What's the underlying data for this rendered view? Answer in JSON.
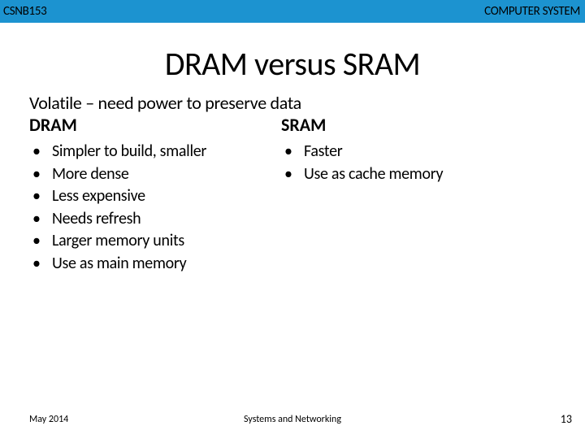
{
  "header": {
    "bg_color": "#1c93d0",
    "left": "CSNB153",
    "right": "COMPUTER SYSTEM"
  },
  "title": "DRAM versus SRAM",
  "subtitle": "Volatile – need power to preserve data",
  "left_column": {
    "heading": "DRAM",
    "items": [
      "Simpler to build, smaller",
      "More dense",
      "Less expensive",
      "Needs refresh",
      "Larger memory units",
      "Use as main memory"
    ]
  },
  "right_column": {
    "heading": "SRAM",
    "items": [
      "Faster",
      "Use as cache memory"
    ]
  },
  "footer": {
    "date": "May 2014",
    "center": "Systems and Networking",
    "page": "13"
  },
  "fonts": {
    "title_size": 40,
    "body_size": 20,
    "header_size": 15,
    "footer_size": 12
  }
}
